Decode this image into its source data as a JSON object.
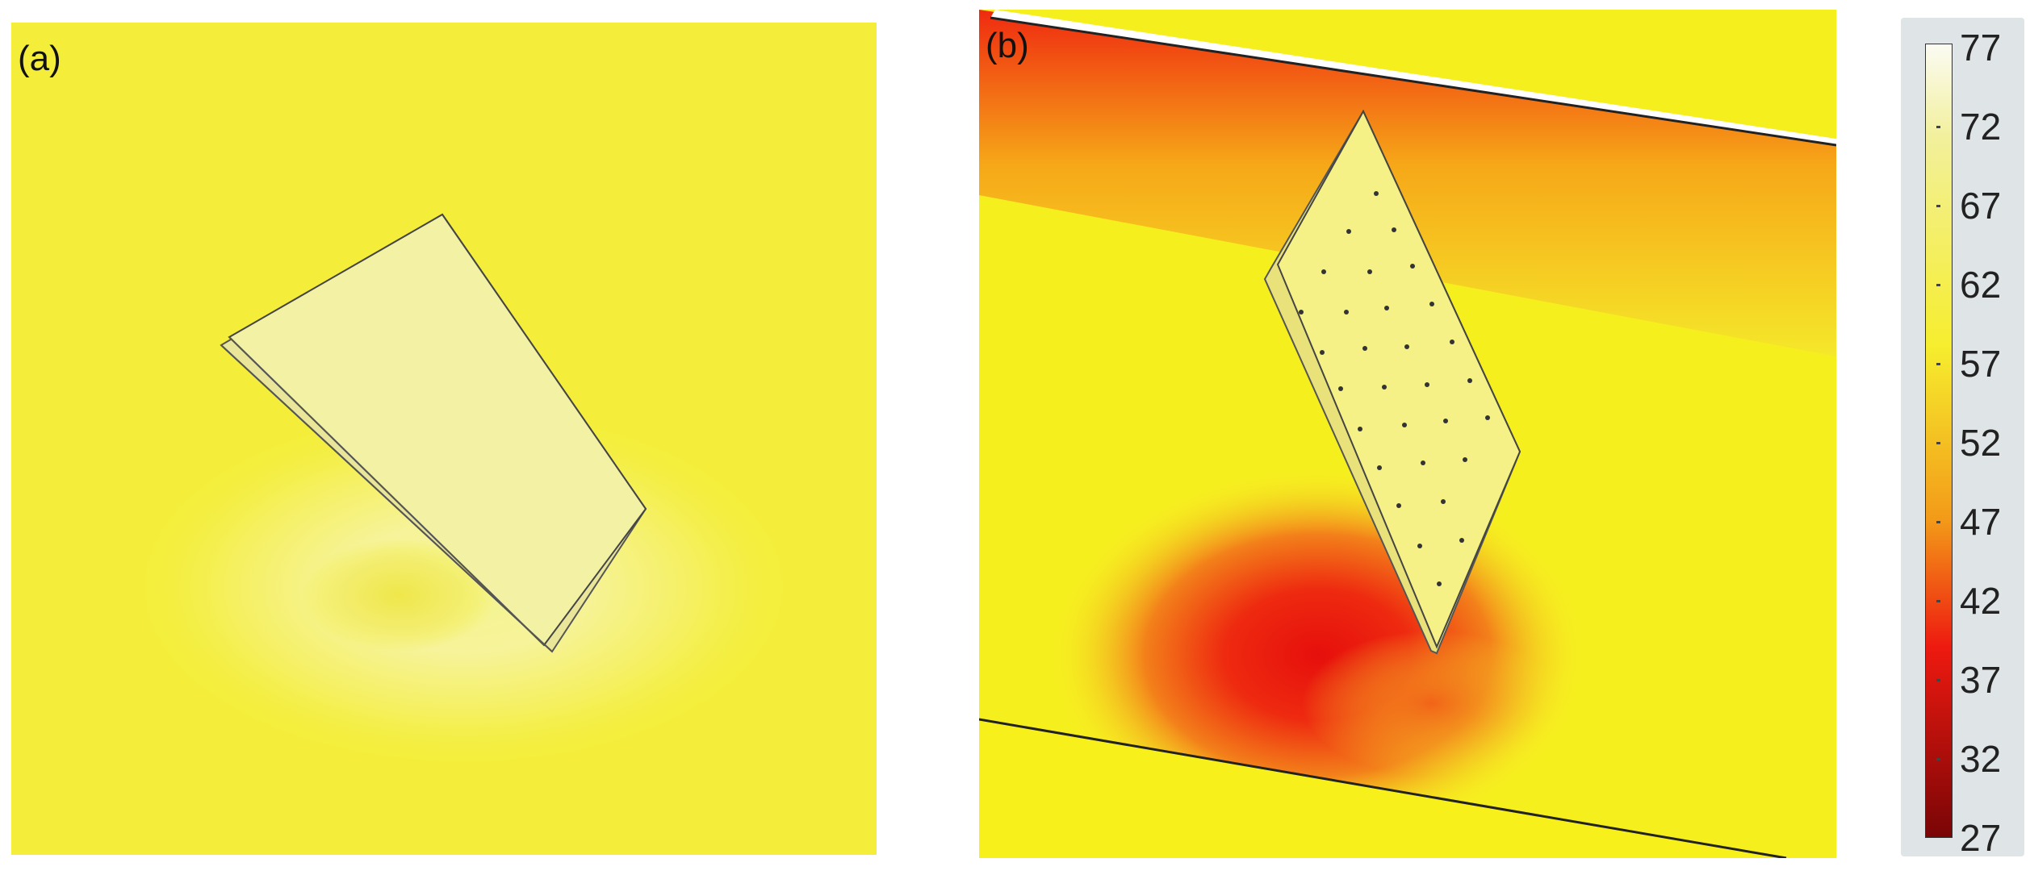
{
  "panels": [
    {
      "label": "(a)"
    },
    {
      "label": "(b)"
    }
  ],
  "colorbar": {
    "ticks": [
      "77",
      "72",
      "67",
      "62",
      "57",
      "52",
      "47",
      "42",
      "37",
      "32",
      "27"
    ],
    "colors": {
      "max": "#fbfbf3",
      "upper": "#f2f09a",
      "mid": "#f6ee2e",
      "orange": "#f39a18",
      "red": "#ee1a10",
      "min": "#7a0506"
    }
  }
}
